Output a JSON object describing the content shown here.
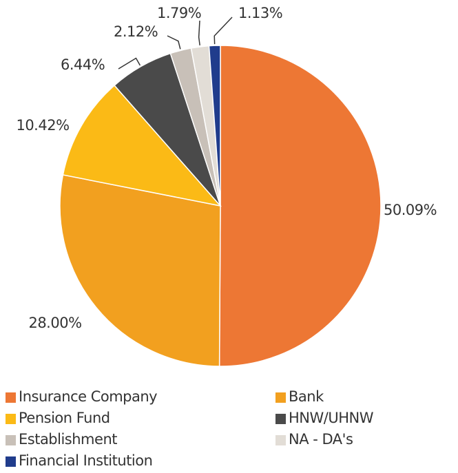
{
  "chart_data": {
    "type": "pie",
    "categories": [
      "Insurance Company",
      "Bank",
      "Pension Fund",
      "HNW/UHNW",
      "Establishment",
      "NA - DA's",
      "Financial Institution"
    ],
    "values": [
      50.09,
      28.0,
      10.42,
      6.44,
      2.12,
      1.79,
      1.13
    ],
    "value_labels": [
      "50.09%",
      "28.00%",
      "10.42%",
      "6.44%",
      "2.12%",
      "1.79%",
      "1.13%"
    ],
    "colors": [
      "#ED7734",
      "#F2A01F",
      "#FBBA16",
      "#4A4A4A",
      "#C8C0B8",
      "#E2DDD6",
      "#203C8C"
    ],
    "legend": "bottom"
  }
}
